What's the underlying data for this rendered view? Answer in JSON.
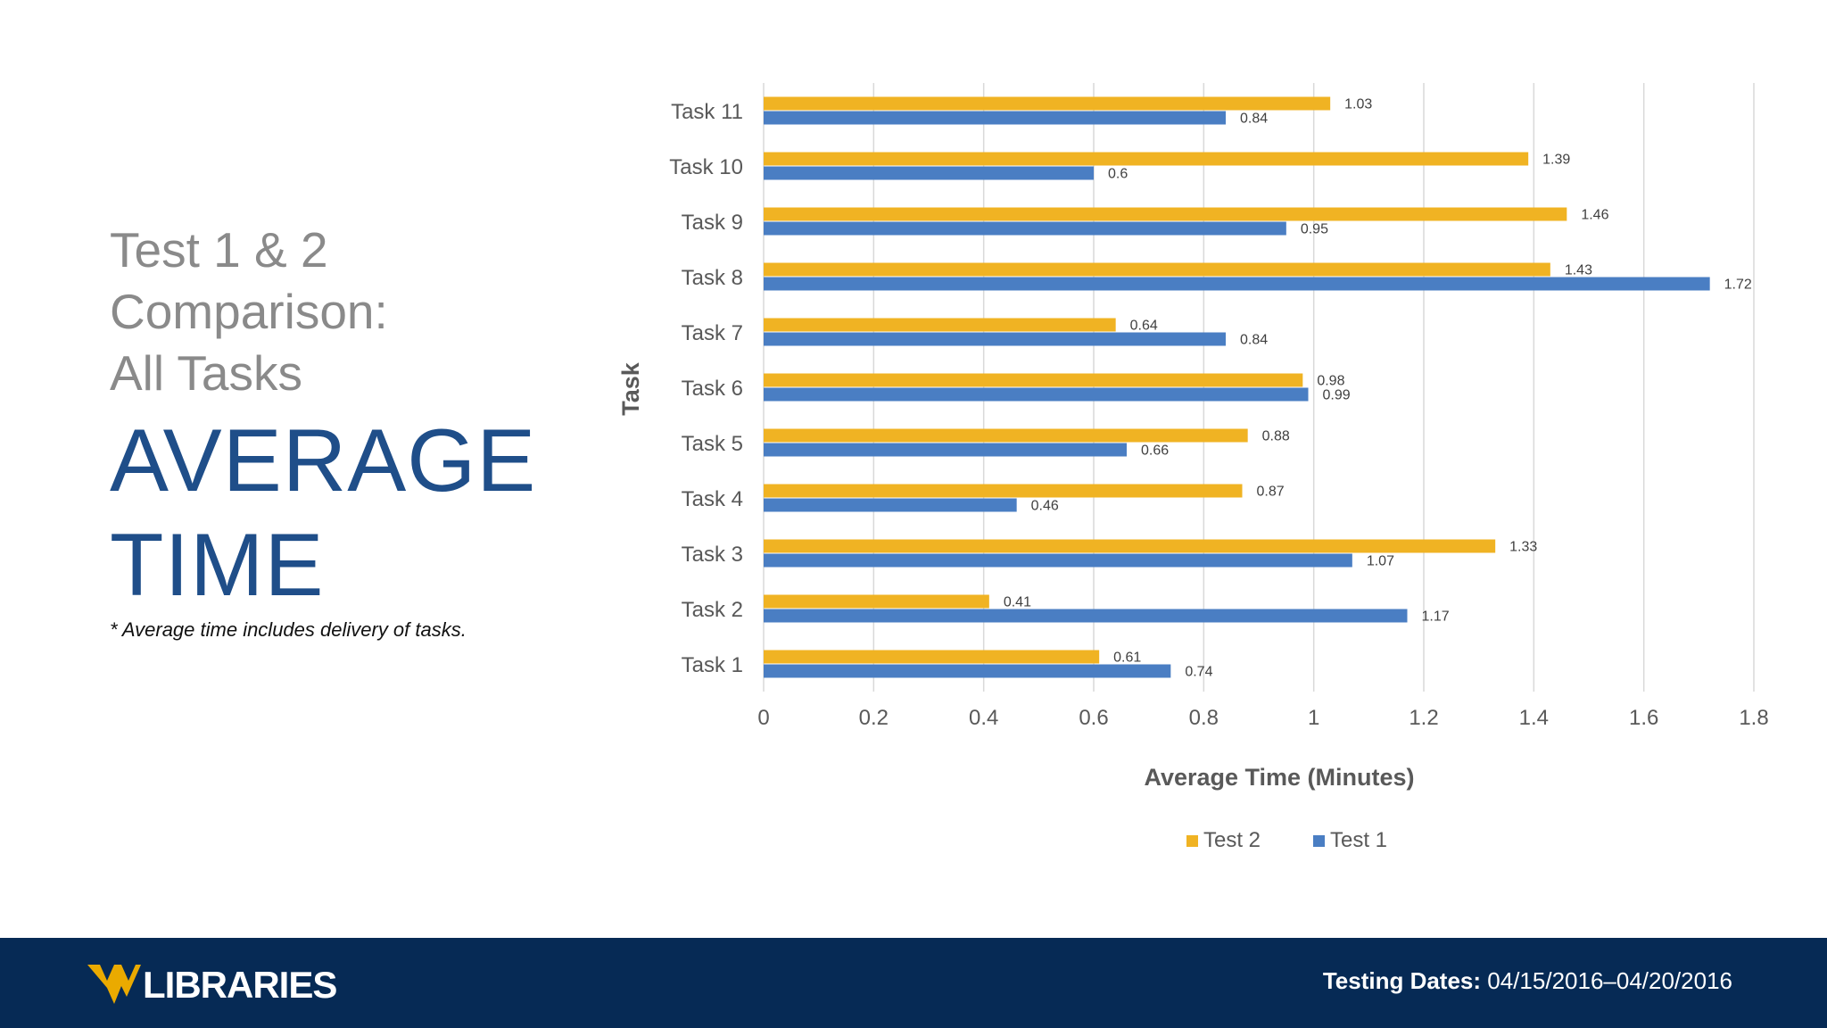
{
  "slide": {
    "subtitle_lines": [
      "Test 1 & 2",
      "Comparison:",
      "All Tasks"
    ],
    "title_lines": [
      "AVERAGE",
      "TIME"
    ],
    "footnote": "* Average time includes delivery of tasks."
  },
  "footer": {
    "logo_text": "LIBRARIES",
    "dates_label": "Testing Dates:",
    "dates_value": "04/15/2016–04/20/2016"
  },
  "colors": {
    "test2": "#f0b323",
    "test1": "#4a7ec3",
    "grid": "#d9d9d9",
    "title": "#1f4e89",
    "footer": "#062a55"
  },
  "chart_data": {
    "type": "bar",
    "orientation": "horizontal",
    "title": "",
    "xlabel": "Average Time (Minutes)",
    "ylabel": "Task",
    "xlim": [
      0,
      1.8
    ],
    "xticks": [
      0,
      0.2,
      0.4,
      0.6,
      0.8,
      1,
      1.2,
      1.4,
      1.6,
      1.8
    ],
    "xtick_labels": [
      "0",
      "0.2",
      "0.4",
      "0.6",
      "0.8",
      "1",
      "1.2",
      "1.4",
      "1.6",
      "1.8"
    ],
    "categories": [
      "Task 11",
      "Task 10",
      "Task 9",
      "Task 8",
      "Task 7",
      "Task 6",
      "Task 5",
      "Task 4",
      "Task 3",
      "Task 2",
      "Task 1"
    ],
    "series": [
      {
        "name": "Test 2",
        "values": [
          1.03,
          1.39,
          1.46,
          1.43,
          0.64,
          0.98,
          0.88,
          0.87,
          1.33,
          0.41,
          0.61
        ],
        "labels": [
          "1.03",
          "1.39",
          "1.46",
          "1.43",
          "0.64",
          "0.98",
          "0.88",
          "0.87",
          "1.33",
          "0.41",
          "0.61"
        ]
      },
      {
        "name": "Test 1",
        "values": [
          0.84,
          0.6,
          0.95,
          1.72,
          0.84,
          0.99,
          0.66,
          0.46,
          1.07,
          1.17,
          0.74
        ],
        "labels": [
          "0.84",
          "0.6",
          "0.95",
          "1.72",
          "0.84",
          "0.99",
          "0.66",
          "0.46",
          "1.07",
          "1.17",
          "0.74"
        ]
      }
    ],
    "legend": {
      "position": "bottom",
      "entries": [
        "Test 2",
        "Test 1"
      ]
    },
    "grid": true
  }
}
